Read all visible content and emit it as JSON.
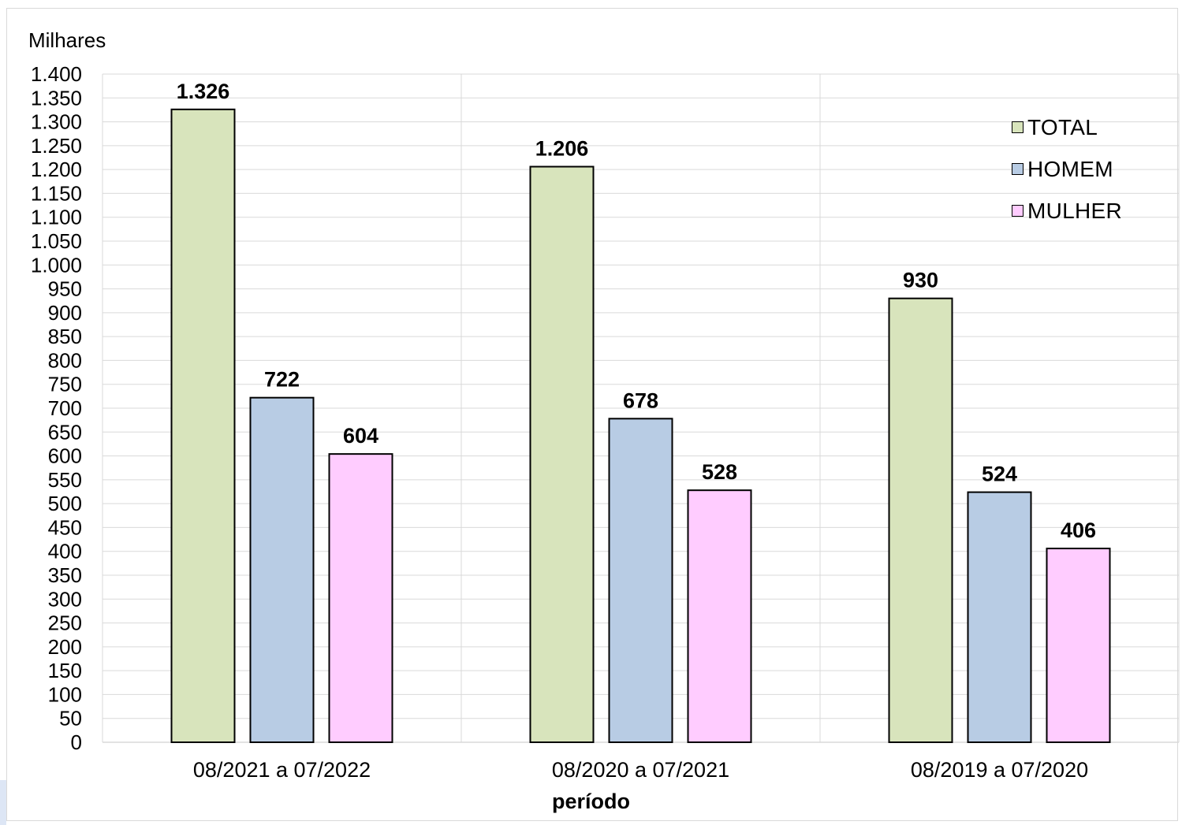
{
  "chart_data": {
    "type": "bar",
    "unit_label": "Milhares",
    "xlabel": "período",
    "categories": [
      "08/2021 a 07/2022",
      "08/2020 a 07/2021",
      "08/2019 a 07/2020"
    ],
    "series": [
      {
        "name": "TOTAL",
        "color": "#d8e4bc",
        "values": [
          1326,
          1206,
          930
        ],
        "labels": [
          "1.326",
          "1.206",
          "930"
        ]
      },
      {
        "name": "HOMEM",
        "color": "#b8cce4",
        "values": [
          722,
          678,
          524
        ],
        "labels": [
          "722",
          "678",
          "524"
        ]
      },
      {
        "name": "MULHER",
        "color": "#ffccff",
        "values": [
          604,
          528,
          406
        ],
        "labels": [
          "604",
          "528",
          "406"
        ]
      }
    ],
    "ylim": [
      0,
      1400
    ],
    "yticks": [
      {
        "value": 0,
        "label": "0"
      },
      {
        "value": 50,
        "label": "50"
      },
      {
        "value": 100,
        "label": "100"
      },
      {
        "value": 150,
        "label": "150"
      },
      {
        "value": 200,
        "label": "200"
      },
      {
        "value": 250,
        "label": "250"
      },
      {
        "value": 300,
        "label": "300"
      },
      {
        "value": 350,
        "label": "350"
      },
      {
        "value": 400,
        "label": "400"
      },
      {
        "value": 450,
        "label": "450"
      },
      {
        "value": 500,
        "label": "500"
      },
      {
        "value": 550,
        "label": "550"
      },
      {
        "value": 600,
        "label": "600"
      },
      {
        "value": 650,
        "label": "650"
      },
      {
        "value": 700,
        "label": "700"
      },
      {
        "value": 750,
        "label": "750"
      },
      {
        "value": 800,
        "label": "800"
      },
      {
        "value": 850,
        "label": "850"
      },
      {
        "value": 900,
        "label": "900"
      },
      {
        "value": 950,
        "label": "950"
      },
      {
        "value": 1000,
        "label": "1.000"
      },
      {
        "value": 1050,
        "label": "1.050"
      },
      {
        "value": 1100,
        "label": "1.100"
      },
      {
        "value": 1150,
        "label": "1.150"
      },
      {
        "value": 1200,
        "label": "1.200"
      },
      {
        "value": 1250,
        "label": "1.250"
      },
      {
        "value": 1300,
        "label": "1.300"
      },
      {
        "value": 1350,
        "label": "1.350"
      },
      {
        "value": 1400,
        "label": "1.400"
      }
    ],
    "grid": true,
    "legend_position": "top-right"
  }
}
